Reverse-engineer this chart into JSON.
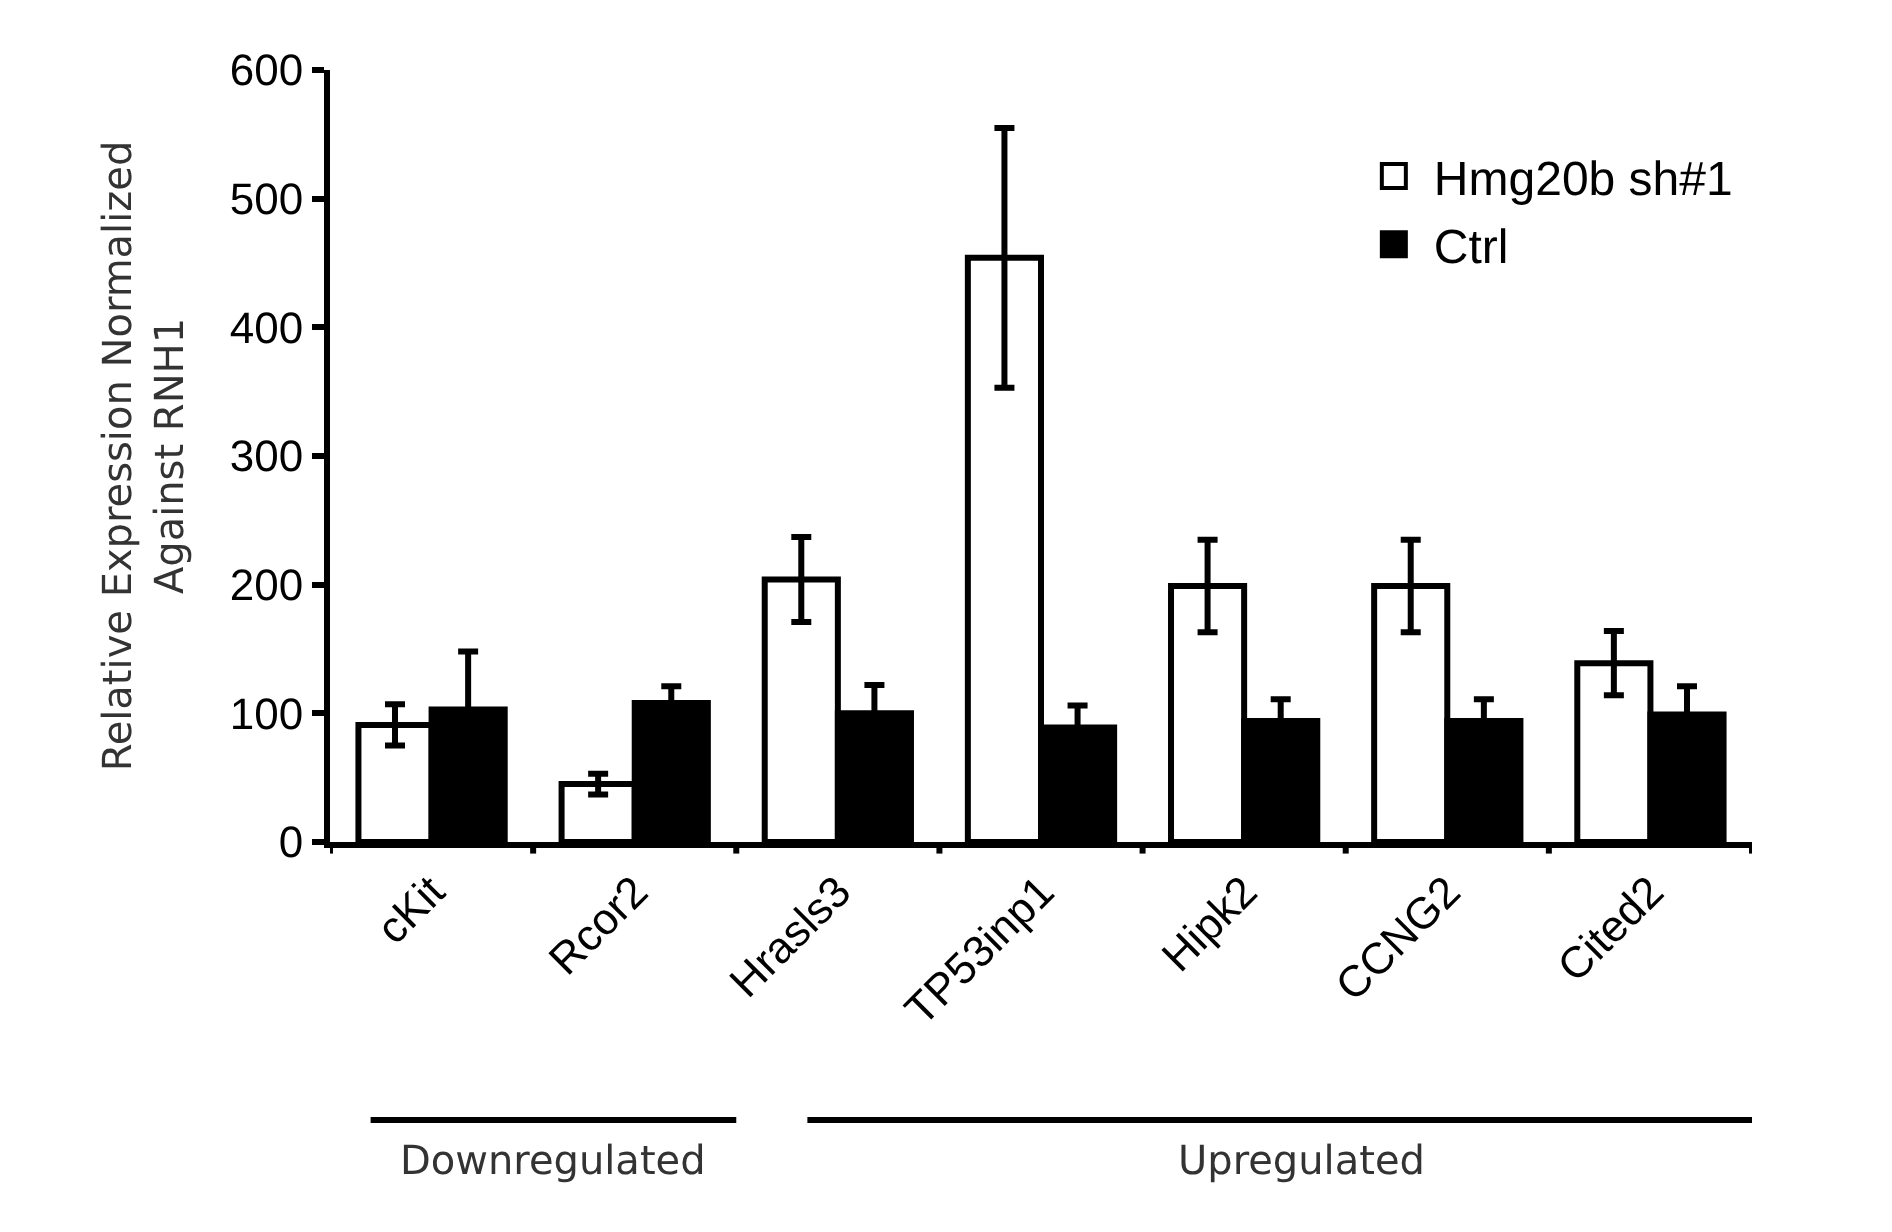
{
  "chart_data": {
    "type": "bar",
    "ylabel": "Relative Expression Normalized\nAgainst RNH1",
    "categories": [
      "cKit",
      "Rcor2",
      "Hrasls3",
      "TP53inp1",
      "Hipk2",
      "CCNG2",
      "Cited2"
    ],
    "series": [
      {
        "name": "Hmg20b sh#1",
        "color": "#ffffff",
        "values": [
          91,
          45,
          204,
          454,
          199,
          199,
          139
        ],
        "errors": [
          16,
          8,
          33,
          101,
          36,
          36,
          25
        ]
      },
      {
        "name": "Ctrl",
        "color": "#000000",
        "values": [
          103,
          108,
          100,
          89,
          94,
          94,
          99
        ],
        "errors": [
          45,
          13,
          22,
          17,
          17,
          17,
          22
        ]
      }
    ],
    "ylim": [
      0,
      600
    ],
    "yticks": [
      0,
      100,
      200,
      300,
      400,
      500,
      600
    ],
    "legend": "top right",
    "annotations": [
      "Downregulated",
      "Upregulated"
    ]
  }
}
